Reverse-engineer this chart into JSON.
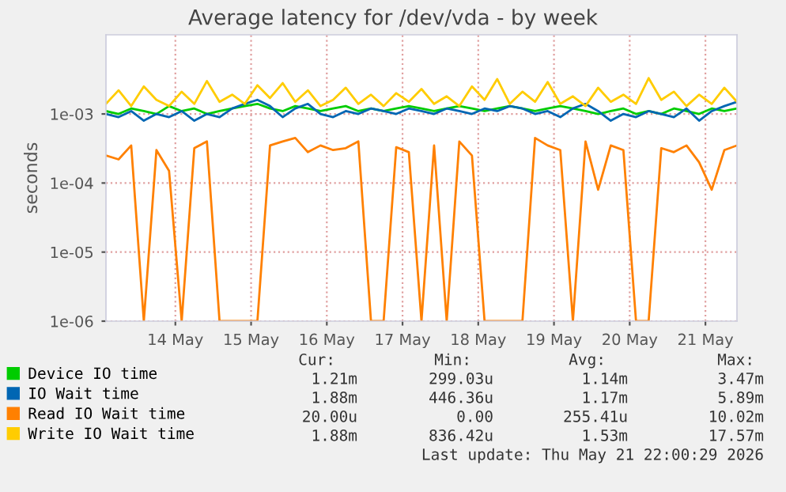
{
  "chart_data": {
    "type": "line",
    "title": "Average latency for /dev/vda - by week",
    "ylabel": "seconds",
    "log": "y",
    "grid": true,
    "legend": "bottom",
    "marker": "none",
    "line_style": "solid",
    "x": [
      "2026-05-13T14:00",
      "2026-05-13T18:00",
      "2026-05-13T22:00",
      "2026-05-14T02:00",
      "2026-05-14T06:00",
      "2026-05-14T10:00",
      "2026-05-14T14:00",
      "2026-05-14T18:00",
      "2026-05-14T22:00",
      "2026-05-15T02:00",
      "2026-05-15T06:00",
      "2026-05-15T10:00",
      "2026-05-15T14:00",
      "2026-05-15T18:00",
      "2026-05-15T22:00",
      "2026-05-16T02:00",
      "2026-05-16T06:00",
      "2026-05-16T10:00",
      "2026-05-16T14:00",
      "2026-05-16T18:00",
      "2026-05-16T22:00",
      "2026-05-17T02:00",
      "2026-05-17T06:00",
      "2026-05-17T10:00",
      "2026-05-17T14:00",
      "2026-05-17T18:00",
      "2026-05-17T22:00",
      "2026-05-18T02:00",
      "2026-05-18T06:00",
      "2026-05-18T10:00",
      "2026-05-18T14:00",
      "2026-05-18T18:00",
      "2026-05-18T22:00",
      "2026-05-19T02:00",
      "2026-05-19T06:00",
      "2026-05-19T10:00",
      "2026-05-19T14:00",
      "2026-05-19T18:00",
      "2026-05-19T22:00",
      "2026-05-20T02:00",
      "2026-05-20T06:00",
      "2026-05-20T10:00",
      "2026-05-20T14:00",
      "2026-05-20T18:00",
      "2026-05-20T22:00",
      "2026-05-21T02:00",
      "2026-05-21T06:00",
      "2026-05-21T10:00",
      "2026-05-21T14:00",
      "2026-05-21T18:00",
      "2026-05-21T22:00"
    ],
    "xlim": [
      "2026-05-13T14:00",
      "2026-05-21T22:00"
    ],
    "xticks": [
      {
        "value": "2026-05-14T12:00",
        "label": "14 May"
      },
      {
        "value": "2026-05-15T12:00",
        "label": "15 May"
      },
      {
        "value": "2026-05-16T12:00",
        "label": "16 May"
      },
      {
        "value": "2026-05-17T12:00",
        "label": "17 May"
      },
      {
        "value": "2026-05-18T12:00",
        "label": "18 May"
      },
      {
        "value": "2026-05-19T12:00",
        "label": "19 May"
      },
      {
        "value": "2026-05-20T12:00",
        "label": "20 May"
      },
      {
        "value": "2026-05-21T12:00",
        "label": "21 May"
      }
    ],
    "ylim": [
      1e-06,
      0.014
    ],
    "yticks": [
      {
        "value": 1e-06,
        "label": "1e-06"
      },
      {
        "value": 1e-05,
        "label": "1e-05"
      },
      {
        "value": 0.0001,
        "label": "1e-04"
      },
      {
        "value": 0.001,
        "label": "1e-03"
      }
    ],
    "series": [
      {
        "name": "Device IO time",
        "color": "#00cc00",
        "values": [
          0.0011,
          0.001,
          0.0012,
          0.0011,
          0.001,
          0.0013,
          0.0011,
          0.0012,
          0.001,
          0.0011,
          0.0012,
          0.0013,
          0.0014,
          0.0012,
          0.0011,
          0.0013,
          0.0012,
          0.0011,
          0.0012,
          0.0013,
          0.0011,
          0.0012,
          0.0011,
          0.0012,
          0.0013,
          0.0012,
          0.0011,
          0.0012,
          0.0013,
          0.0012,
          0.0011,
          0.0012,
          0.0013,
          0.0012,
          0.0011,
          0.0012,
          0.0013,
          0.0012,
          0.0011,
          0.001,
          0.0011,
          0.0012,
          0.001,
          0.0011,
          0.001,
          0.0012,
          0.0011,
          0.001,
          0.0012,
          0.0011,
          0.0012
        ]
      },
      {
        "name": "IO Wait time",
        "color": "#0066b3",
        "values": [
          0.001,
          0.0009,
          0.0011,
          0.0008,
          0.001,
          0.0009,
          0.0011,
          0.0008,
          0.001,
          0.0009,
          0.0012,
          0.0014,
          0.0016,
          0.0013,
          0.0009,
          0.0012,
          0.0014,
          0.001,
          0.0009,
          0.0011,
          0.001,
          0.0012,
          0.0011,
          0.001,
          0.0012,
          0.0011,
          0.001,
          0.0012,
          0.0011,
          0.001,
          0.0012,
          0.0011,
          0.0013,
          0.0012,
          0.001,
          0.0011,
          0.0009,
          0.0012,
          0.0014,
          0.0011,
          0.0008,
          0.001,
          0.0009,
          0.0011,
          0.001,
          0.0009,
          0.0012,
          0.0008,
          0.0011,
          0.0013,
          0.0015
        ]
      },
      {
        "name": "Read IO Wait time",
        "color": "#ff8000",
        "values": [
          0.00025,
          0.00022,
          0.00035,
          1e-06,
          0.0003,
          0.00015,
          1e-06,
          0.00032,
          0.0004,
          1e-06,
          1e-06,
          1e-06,
          1e-06,
          0.00035,
          0.0004,
          0.00045,
          0.00028,
          0.00035,
          0.0003,
          0.00032,
          0.0004,
          1e-06,
          1e-06,
          0.00033,
          0.00028,
          1e-06,
          0.00035,
          1e-06,
          0.0004,
          0.00025,
          1e-06,
          1e-06,
          1e-06,
          1e-06,
          0.00045,
          0.00035,
          0.0003,
          1e-06,
          0.0004,
          8e-05,
          0.00035,
          0.0003,
          1e-06,
          1e-06,
          0.00032,
          0.00028,
          0.00035,
          0.0002,
          8e-05,
          0.0003,
          0.00035
        ]
      },
      {
        "name": "Write IO Wait time",
        "color": "#ffcc00",
        "values": [
          0.0014,
          0.0022,
          0.0013,
          0.0025,
          0.0016,
          0.0013,
          0.0021,
          0.0014,
          0.003,
          0.0015,
          0.0019,
          0.0014,
          0.0026,
          0.0017,
          0.0028,
          0.0015,
          0.0022,
          0.0013,
          0.0016,
          0.0024,
          0.0014,
          0.0019,
          0.0013,
          0.002,
          0.0015,
          0.0023,
          0.0014,
          0.0018,
          0.0013,
          0.0025,
          0.0016,
          0.0032,
          0.0014,
          0.0021,
          0.0015,
          0.0029,
          0.0014,
          0.0018,
          0.0013,
          0.0024,
          0.0015,
          0.0019,
          0.0014,
          0.0033,
          0.0016,
          0.0021,
          0.0013,
          0.0019,
          0.0014,
          0.0024,
          0.0015
        ]
      }
    ],
    "annotations": [
      "Cur:",
      "Min:",
      "Avg:",
      "Max:",
      "1.21m",
      "299.03u",
      "1.14m",
      "3.47m",
      "1.88m",
      "446.36u",
      "1.17m",
      "5.89m",
      "20.00u",
      "0.00",
      "255.41u",
      "10.02m",
      "1.88m",
      "836.42u",
      "1.53m",
      "17.57m",
      "Last update: Thu May 21 22:00:29 2026"
    ]
  }
}
